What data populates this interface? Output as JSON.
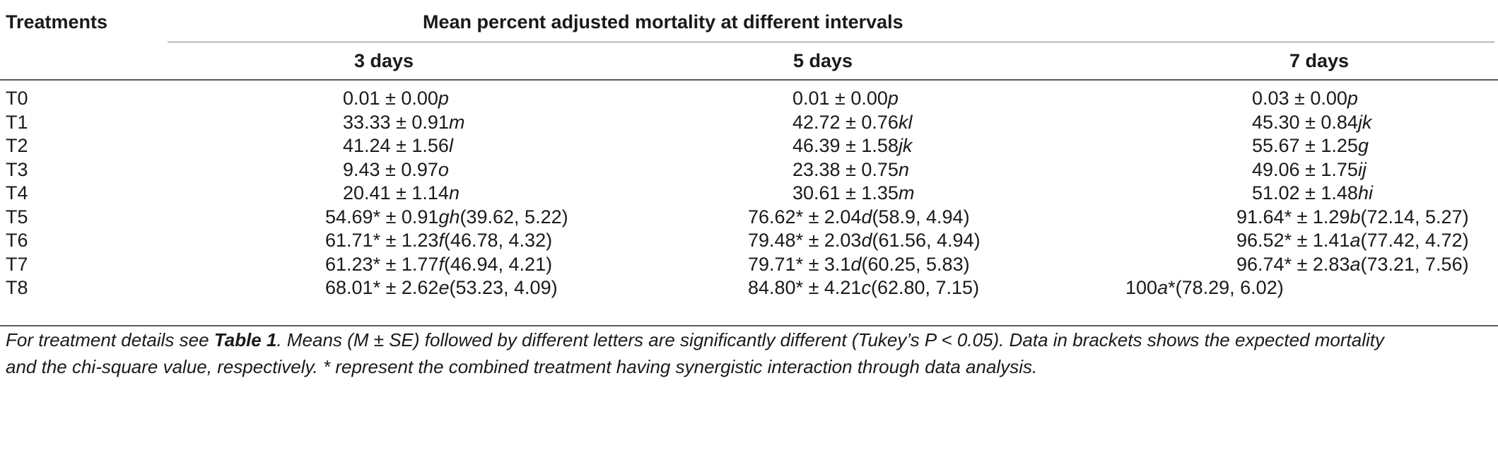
{
  "header": {
    "treatments_label": "Treatments",
    "group_title": "Mean percent adjusted mortality at different intervals",
    "columns": [
      "3 days",
      "5 days",
      "7 days"
    ]
  },
  "rows": [
    {
      "name": "T0",
      "cells": [
        {
          "value": "0.01 ± 0.00",
          "letter": "p",
          "tail": ""
        },
        {
          "value": "0.01 ± 0.00",
          "letter": "p",
          "tail": ""
        },
        {
          "value": "0.03 ± 0.00",
          "letter": "p",
          "tail": ""
        }
      ]
    },
    {
      "name": "T1",
      "cells": [
        {
          "value": "33.33 ± 0.91",
          "letter": "m",
          "tail": ""
        },
        {
          "value": "42.72 ± 0.76",
          "letter": "kl",
          "tail": ""
        },
        {
          "value": "45.30 ± 0.84",
          "letter": "jk",
          "tail": ""
        }
      ]
    },
    {
      "name": "T2",
      "cells": [
        {
          "value": "41.24 ± 1.56",
          "letter": "l",
          "tail": ""
        },
        {
          "value": "46.39 ± 1.58",
          "letter": "jk",
          "tail": ""
        },
        {
          "value": "55.67 ± 1.25",
          "letter": "g",
          "tail": ""
        }
      ]
    },
    {
      "name": "T3",
      "cells": [
        {
          "value": "9.43 ± 0.97",
          "letter": "o",
          "tail": ""
        },
        {
          "value": "23.38 ± 0.75",
          "letter": "n",
          "tail": ""
        },
        {
          "value": "49.06 ± 1.75",
          "letter": "ij",
          "tail": ""
        }
      ]
    },
    {
      "name": "T4",
      "cells": [
        {
          "value": "20.41 ± 1.14",
          "letter": "n",
          "tail": ""
        },
        {
          "value": "30.61 ± 1.35",
          "letter": "m",
          "tail": ""
        },
        {
          "value": "51.02 ± 1.48",
          "letter": "hi",
          "tail": ""
        }
      ]
    },
    {
      "name": "T5",
      "cells": [
        {
          "value": "54.69* ± 0.91",
          "letter": "gh",
          "tail": "(39.62, 5.22)"
        },
        {
          "value": "76.62* ± 2.04",
          "letter": "d",
          "tail": "(58.9, 4.94)"
        },
        {
          "value": "91.64* ± 1.29",
          "letter": "b",
          "tail": "(72.14, 5.27)"
        }
      ]
    },
    {
      "name": "T6",
      "cells": [
        {
          "value": "61.71* ± 1.23",
          "letter": "f",
          "tail": "(46.78, 4.32)"
        },
        {
          "value": "79.48* ± 2.03",
          "letter": "d",
          "tail": "(61.56, 4.94)"
        },
        {
          "value": "96.52* ± 1.41",
          "letter": "a",
          "tail": "(77.42, 4.72)"
        }
      ]
    },
    {
      "name": "T7",
      "cells": [
        {
          "value": "61.23* ± 1.77",
          "letter": "f",
          "tail": "(46.94, 4.21)"
        },
        {
          "value": "79.71* ± 3.1",
          "letter": "d",
          "tail": "(60.25, 5.83)"
        },
        {
          "value": "96.74* ± 2.83",
          "letter": "a",
          "tail": "(73.21, 7.56)"
        }
      ]
    },
    {
      "name": "T8",
      "cells": [
        {
          "value": "68.01* ± 2.62",
          "letter": "e",
          "tail": "(53.23, 4.09)"
        },
        {
          "value": "84.80* ± 4.21",
          "letter": "c",
          "tail": "(62.80, 7.15)"
        },
        {
          "value": "100",
          "letter": "a",
          "tail": "*(78.29, 6.02)"
        }
      ]
    }
  ],
  "footnote": {
    "p1": "For treatment details see ",
    "ref": "Table 1",
    "p2": ". Means (M ± SE) followed by different letters are significantly different (Tukey’s P < 0.05). Data in brackets shows the expected mortality",
    "line2": "and the chi-square value, respectively. * represent the combined treatment having synergistic interaction through data analysis."
  }
}
